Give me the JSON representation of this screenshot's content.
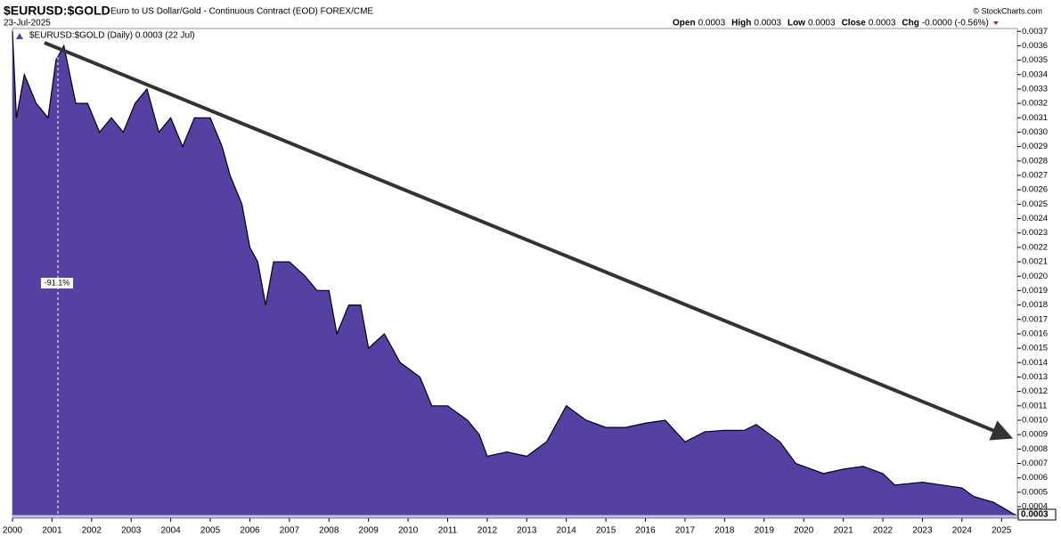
{
  "chart_data": {
    "type": "area",
    "title": "$EURUSD:$GOLD",
    "subtitle": "Euro to US Dollar/Gold - Continuous Contract (EOD) FOREX/CME",
    "date": "23-Jul-2025",
    "ohlc": [
      {
        "label": "Open",
        "value": "0.0003"
      },
      {
        "label": "High",
        "value": "0.0003"
      },
      {
        "label": "Low",
        "value": "0.0003"
      },
      {
        "label": "Close",
        "value": "0.0003"
      },
      {
        "label": "Chg",
        "value": "-0.0000 (-0.56%)"
      }
    ],
    "credit": "© StockCharts.com",
    "legend": "$EURUSD:$GOLD (Daily) 0.0003 (22 Jul)",
    "annotation": "-91.1%",
    "last_label": "0.0003",
    "color": "#5640a2",
    "line_color": "#000000",
    "x": [
      2000.0,
      2000.1,
      2000.3,
      2000.6,
      2000.9,
      2001.1,
      2001.3,
      2001.6,
      2001.9,
      2002.2,
      2002.5,
      2002.8,
      2003.1,
      2003.4,
      2003.7,
      2004.0,
      2004.3,
      2004.6,
      2005.0,
      2005.3,
      2005.5,
      2005.8,
      2006.0,
      2006.2,
      2006.4,
      2006.6,
      2007.0,
      2007.4,
      2007.7,
      2008.0,
      2008.2,
      2008.5,
      2008.8,
      2009.0,
      2009.4,
      2009.8,
      2010.3,
      2010.6,
      2011.0,
      2011.5,
      2011.8,
      2012.0,
      2012.5,
      2013.0,
      2013.5,
      2013.8,
      2014.0,
      2014.5,
      2015.0,
      2015.5,
      2016.0,
      2016.5,
      2017.0,
      2017.5,
      2018.0,
      2018.5,
      2018.8,
      2019.4,
      2019.8,
      2020.5,
      2021.0,
      2021.5,
      2022.0,
      2022.3,
      2023.0,
      2023.5,
      2024.0,
      2024.3,
      2024.8,
      2025.3,
      2025.38
    ],
    "values": [
      0.0037,
      0.0031,
      0.0034,
      0.0032,
      0.0031,
      0.0035,
      0.0036,
      0.0032,
      0.0032,
      0.003,
      0.0031,
      0.003,
      0.0032,
      0.0033,
      0.003,
      0.0031,
      0.0029,
      0.0031,
      0.0031,
      0.0029,
      0.0027,
      0.0025,
      0.0022,
      0.0021,
      0.0018,
      0.0021,
      0.0021,
      0.002,
      0.0019,
      0.0019,
      0.0016,
      0.0018,
      0.0018,
      0.0015,
      0.0016,
      0.0014,
      0.0013,
      0.0011,
      0.0011,
      0.001,
      0.0009,
      0.00075,
      0.00078,
      0.00075,
      0.00085,
      0.001,
      0.0011,
      0.001,
      0.00095,
      0.00095,
      0.00098,
      0.001,
      0.00085,
      0.00092,
      0.00093,
      0.00093,
      0.00097,
      0.00085,
      0.0007,
      0.00063,
      0.00066,
      0.00068,
      0.00063,
      0.00055,
      0.00057,
      0.00055,
      0.00053,
      0.00047,
      0.00043,
      0.00035,
      0.00034
    ],
    "xlim": [
      2000,
      2025.4
    ],
    "xticks": [
      2000,
      2001,
      2002,
      2003,
      2004,
      2005,
      2006,
      2007,
      2008,
      2009,
      2010,
      2011,
      2012,
      2013,
      2014,
      2015,
      2016,
      2017,
      2018,
      2019,
      2020,
      2021,
      2022,
      2023,
      2024,
      2025
    ],
    "ylim": [
      0.00032,
      0.00372
    ],
    "yticks": [
      0.0004,
      0.0005,
      0.0006,
      0.0007,
      0.0008,
      0.0009,
      {
        "value": 0.001,
        "label": "0.0010"
      },
      0.0011,
      0.0012,
      0.0013,
      0.0014,
      0.0015,
      0.0016,
      0.0017,
      0.0018,
      0.0019,
      {
        "value": 0.002,
        "label": "0.0020"
      },
      0.0021,
      0.0022,
      0.0023,
      0.0024,
      0.0025,
      0.0026,
      0.0027,
      0.0028,
      0.0029,
      {
        "value": 0.003,
        "label": "0.0030"
      },
      0.0031,
      0.0032,
      0.0033,
      0.0034,
      0.0035,
      0.0036,
      0.0037
    ]
  }
}
